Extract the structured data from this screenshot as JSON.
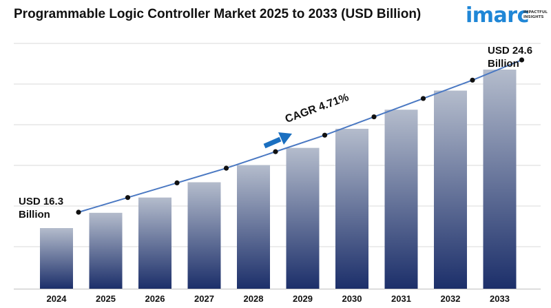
{
  "title": "Programmable Logic Controller Market 2025 to 2033 (USD Billion)",
  "logo": {
    "word": "imarc",
    "tagline_line1": "IMPACTFUL",
    "tagline_line2": "INSIGHTS"
  },
  "annotations": {
    "first_value_line1": "USD 16.3",
    "first_value_line2": "Billion",
    "last_value_line1": "USD 24.6",
    "last_value_line2": "Billion",
    "cagr": "CAGR 4.71%"
  },
  "colors": {
    "bar_top": "#b4bccc",
    "bar_bottom": "#1c2f6a",
    "trend_line": "#4a78c2",
    "trend_marker": "#111111",
    "cagr_arrow": "#1a6fc0",
    "grid": "#d9d9d9"
  },
  "chart_data": {
    "type": "bar",
    "categories": [
      "2024",
      "2025",
      "2026",
      "2027",
      "2028",
      "2029",
      "2030",
      "2031",
      "2032",
      "2033"
    ],
    "values": [
      16.3,
      17.1,
      17.9,
      18.7,
      19.6,
      20.5,
      21.5,
      22.5,
      23.5,
      24.6
    ],
    "trend_line": [
      16.3,
      17.1,
      17.9,
      18.7,
      19.6,
      20.5,
      21.5,
      22.5,
      23.5,
      24.6
    ],
    "xlabel": "",
    "ylabel": "",
    "grid": true,
    "legend": "none"
  }
}
